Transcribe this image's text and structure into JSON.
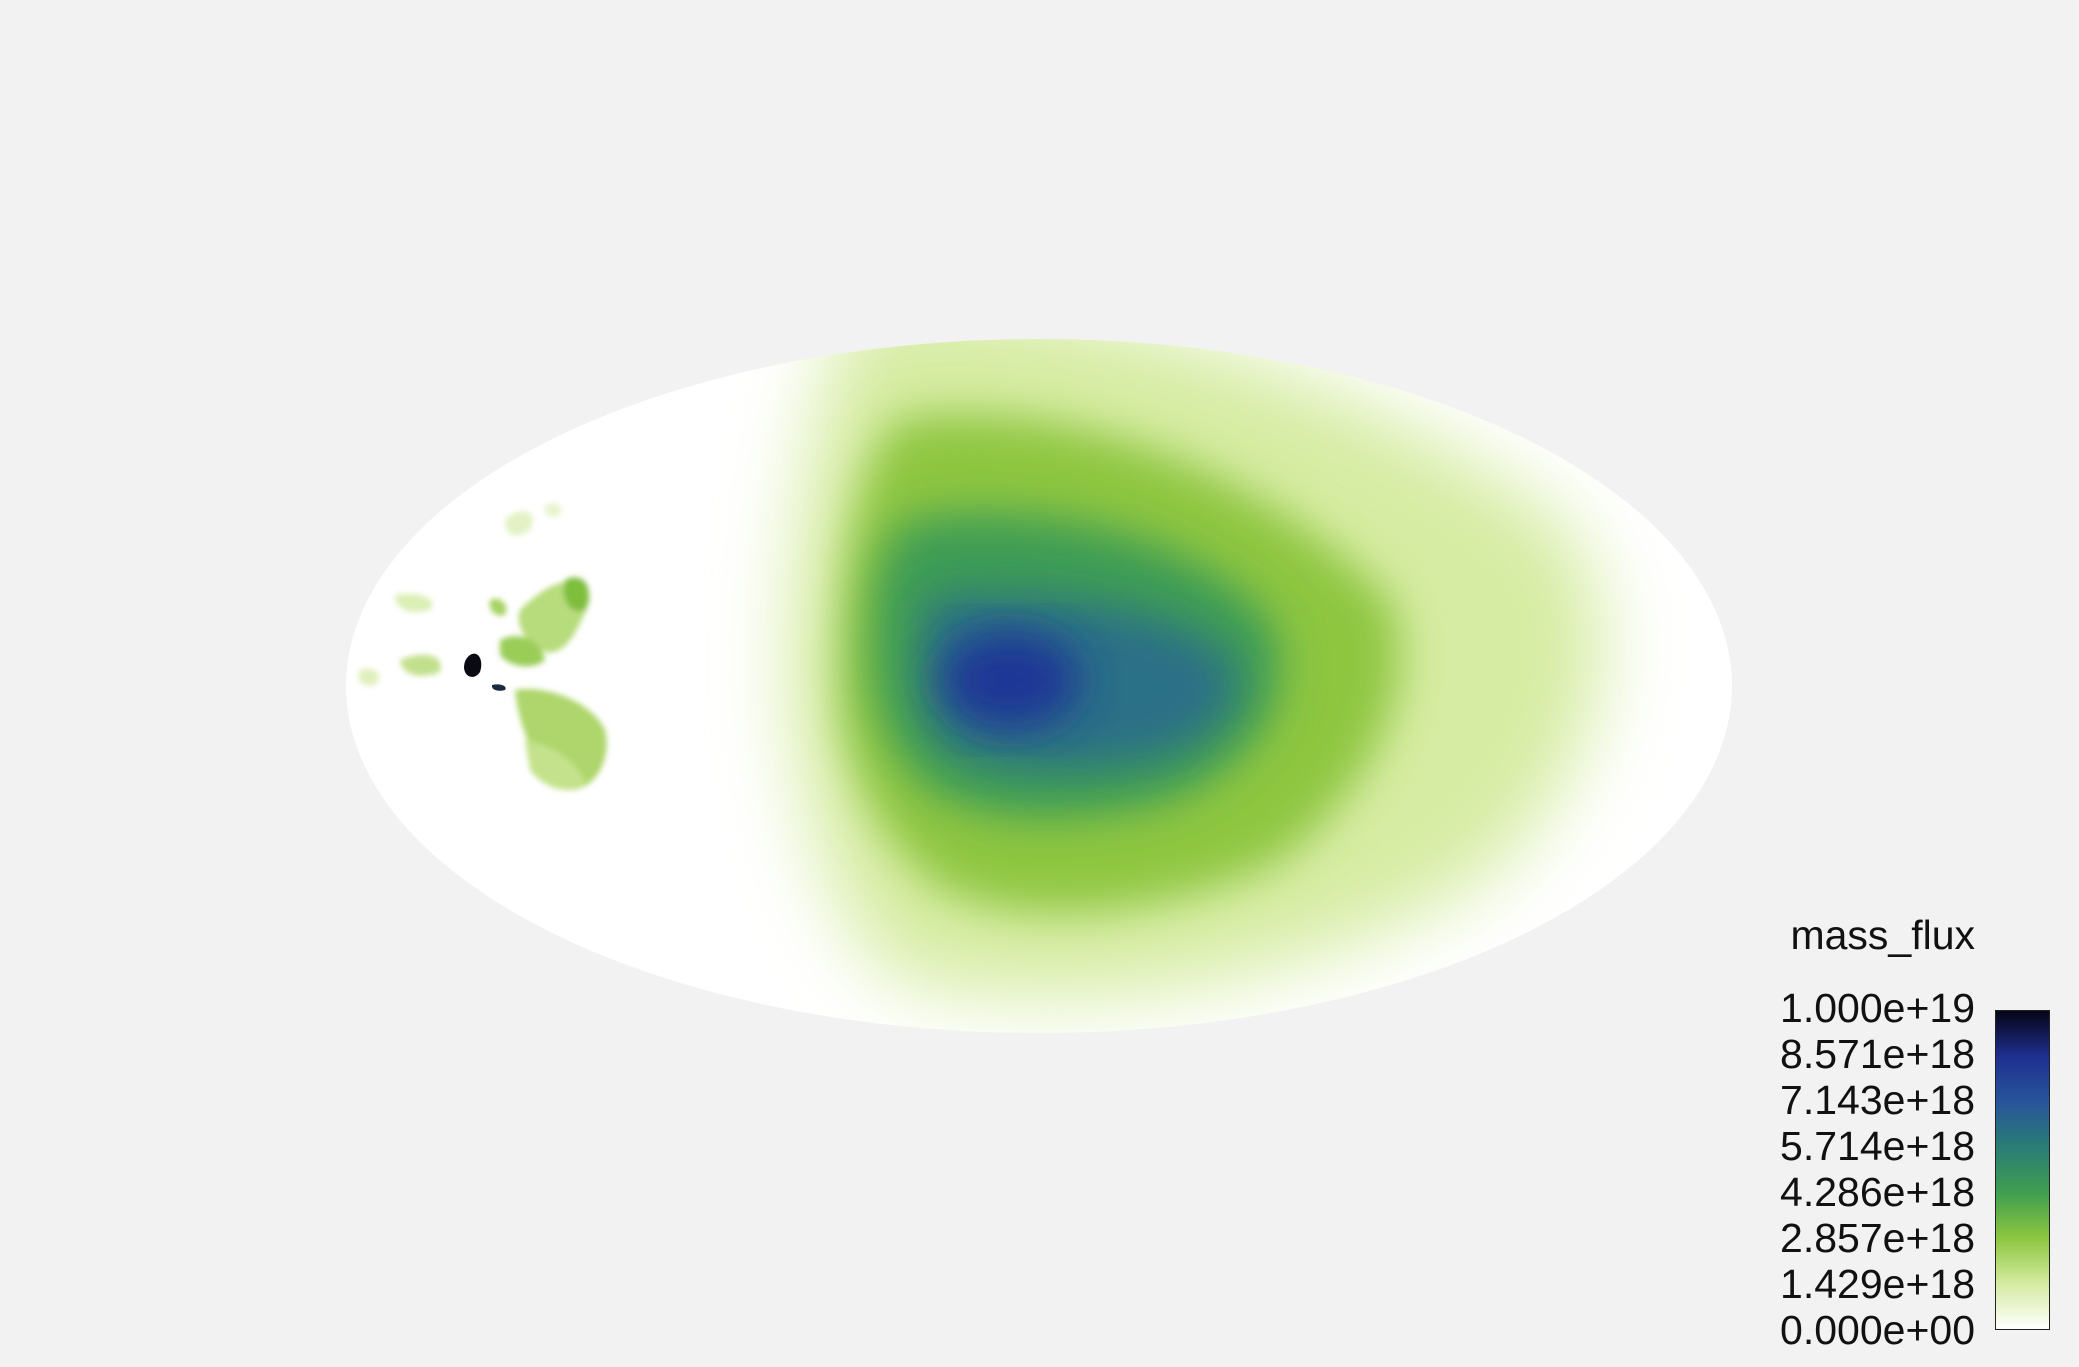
{
  "colorbar": {
    "title": "mass_flux",
    "ticks": [
      "1.000e+19",
      "8.571e+18",
      "7.143e+18",
      "5.714e+18",
      "4.286e+18",
      "2.857e+18",
      "1.429e+18",
      "0.000e+00"
    ],
    "min": 0,
    "max": 1e+19,
    "colormap": [
      "#ffffff",
      "#d4eba0",
      "#8cc63f",
      "#3f9e4f",
      "#2a7d75",
      "#27559a",
      "#1f2f8f",
      "#050516"
    ]
  },
  "map": {
    "projection": "mollweide",
    "background_color": "#f2f2f3"
  }
}
